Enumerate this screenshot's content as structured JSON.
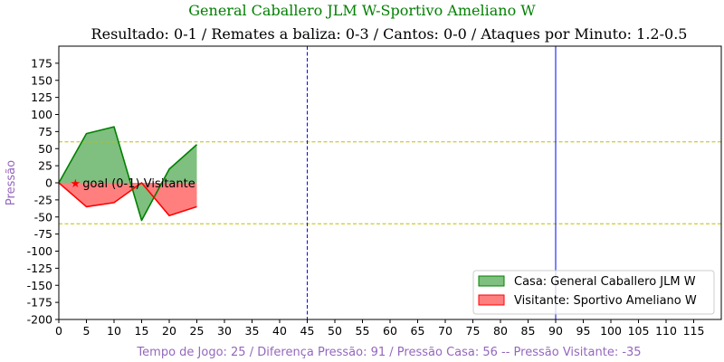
{
  "chart_data": {
    "type": "area",
    "title": "General Caballero JLM W-Sportivo Ameliano W",
    "subtitle": "Resultado: 0-1 / Remates a baliza: 0-3 / Cantos: 0-0 / Ataques por Minuto: 1.2-0.5",
    "xlabel": "Tempo de Jogo: 25 / Diferença Pressão: 91 / Pressão Casa: 56 -- Pressão Visitante: -35",
    "ylabel": "Pressão",
    "xlim": [
      0,
      120
    ],
    "ylim": [
      -200,
      200
    ],
    "xticks": [
      0,
      5,
      10,
      15,
      20,
      25,
      30,
      35,
      40,
      45,
      50,
      55,
      60,
      65,
      70,
      75,
      80,
      85,
      90,
      95,
      100,
      105,
      110,
      115
    ],
    "yticks": [
      -200,
      -175,
      -150,
      -125,
      -100,
      -75,
      -50,
      -25,
      0,
      25,
      50,
      75,
      100,
      125,
      150,
      175
    ],
    "x": [
      0,
      5,
      10,
      15,
      20,
      25
    ],
    "series": [
      {
        "name": "Casa: General Caballero JLM W",
        "values": [
          0,
          72,
          82,
          -55,
          20,
          56
        ],
        "line_color": "#008000",
        "fill_color": "#7fbf7f"
      },
      {
        "name": "Visitante: Sportivo Ameliano W",
        "values": [
          0,
          -35,
          -29,
          0,
          -48,
          -35
        ],
        "line_color": "#ff0000",
        "fill_color": "#ff7f7f"
      }
    ],
    "hlines": [
      {
        "y": 60,
        "color": "#bfbf00",
        "style": "dashed"
      },
      {
        "y": -60,
        "color": "#bfbf00",
        "style": "dashed"
      }
    ],
    "vlines": [
      {
        "x": 45,
        "color": "#0000ff",
        "style": "dashed"
      },
      {
        "x": 90,
        "color": "#0000ff",
        "style": "solid"
      }
    ],
    "annotations": [
      {
        "x": 3,
        "y": 0,
        "marker": "star",
        "color": "#ff0000",
        "text": "goal (0-1) Visitante"
      }
    ],
    "legend_position": "bottom-right",
    "grid": false,
    "title_color": "#008000",
    "label_color": "#9467bd"
  }
}
